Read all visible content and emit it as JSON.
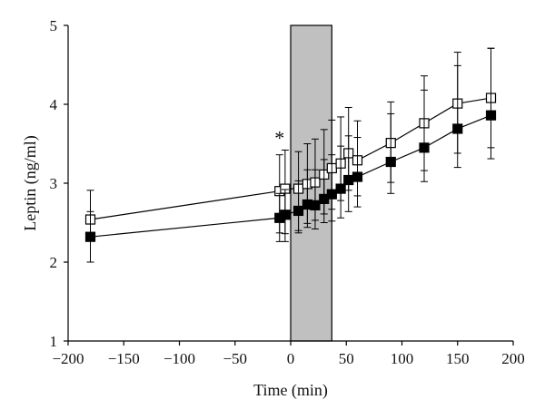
{
  "chart_data": {
    "type": "line",
    "title": "",
    "xlabel": "Time (min)",
    "ylabel": "Leptin (ng/ml)",
    "xlim": [
      -200,
      200
    ],
    "ylim": [
      1,
      5
    ],
    "xticks": [
      -200,
      -150,
      -100,
      -50,
      0,
      50,
      100,
      150,
      200
    ],
    "yticks": [
      1,
      2,
      3,
      4,
      5
    ],
    "xtick_labels": [
      "−200",
      "−150",
      "−100",
      "−50",
      "0",
      "50",
      "100",
      "150",
      "200"
    ],
    "ytick_labels": [
      "1",
      "2",
      "3",
      "4",
      "5"
    ],
    "grid": false,
    "legend": "none",
    "shaded_interval": {
      "x": [
        0,
        37
      ],
      "color": "#c0c0c0"
    },
    "annotations": [
      {
        "text": "*",
        "x": -10,
        "y": 3.58
      }
    ],
    "series": [
      {
        "marker": "open-square",
        "color": "#000000",
        "x": [
          -180,
          -10,
          -5,
          7,
          15,
          22,
          30,
          37,
          45,
          52,
          60,
          90,
          120,
          150,
          180
        ],
        "y": [
          2.54,
          2.9,
          2.93,
          2.93,
          2.99,
          3.01,
          3.11,
          3.19,
          3.25,
          3.38,
          3.29,
          3.51,
          3.76,
          4.01,
          4.08
        ],
        "err_low": [
          0.27,
          0.53,
          0.57,
          0.53,
          0.5,
          0.48,
          0.5,
          0.52,
          0.47,
          0.47,
          0.45,
          0.5,
          0.6,
          0.63,
          0.63
        ],
        "err_high": [
          0.37,
          0.46,
          0.49,
          0.47,
          0.51,
          0.55,
          0.57,
          0.61,
          0.59,
          0.58,
          0.5,
          0.52,
          0.6,
          0.65,
          0.63
        ]
      },
      {
        "marker": "filled-square",
        "color": "#000000",
        "x": [
          -180,
          -10,
          -5,
          7,
          15,
          22,
          30,
          37,
          45,
          52,
          60,
          90,
          120,
          150,
          180
        ],
        "y": [
          2.32,
          2.56,
          2.6,
          2.65,
          2.73,
          2.72,
          2.8,
          2.86,
          2.93,
          3.04,
          3.08,
          3.27,
          3.45,
          3.69,
          3.86
        ],
        "err_low": [
          0.32,
          0.3,
          0.34,
          0.28,
          0.29,
          0.3,
          0.3,
          0.34,
          0.37,
          0.4,
          0.38,
          0.4,
          0.43,
          0.49,
          0.55
        ],
        "err_high": [
          0.32,
          0.31,
          0.32,
          0.38,
          0.44,
          0.45,
          0.5,
          0.5,
          0.54,
          0.56,
          0.5,
          0.61,
          0.73,
          0.8,
          0.85
        ]
      }
    ]
  }
}
